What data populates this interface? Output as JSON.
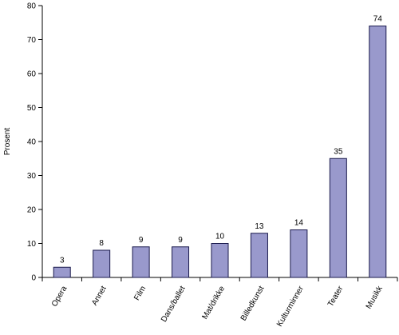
{
  "chart_data": {
    "type": "bar",
    "title": "",
    "xlabel": "",
    "ylabel": "Prosent",
    "ylim": [
      0,
      80
    ],
    "yticks": [
      0,
      10,
      20,
      30,
      40,
      50,
      60,
      70,
      80
    ],
    "grid": false,
    "legend": "none",
    "categories": [
      "Opera",
      "Annet",
      "Film",
      "Dans/ballet",
      "Mat/drikke",
      "Billedkunst",
      "Kulturminner",
      "Teater",
      "Musikk"
    ],
    "values": [
      3,
      8,
      9,
      9,
      10,
      13,
      14,
      35,
      74
    ],
    "data_labels": [
      "3",
      "8",
      "9",
      "9",
      "10",
      "13",
      "14",
      "35",
      "74"
    ],
    "colors": {
      "bar_fill": "#9999cc",
      "bar_stroke": "#1a1a4d",
      "axis": "#000000"
    }
  }
}
